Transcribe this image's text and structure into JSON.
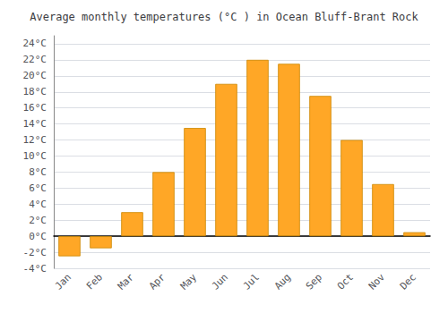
{
  "chart_data": {
    "type": "bar",
    "title": "Average monthly temperatures (°C ) in Ocean Bluff-Brant Rock",
    "categories": [
      "Jan",
      "Feb",
      "Mar",
      "Apr",
      "May",
      "Jun",
      "Jul",
      "Aug",
      "Sep",
      "Oct",
      "Nov",
      "Dec"
    ],
    "values": [
      -2.5,
      -1.5,
      3.0,
      8.0,
      13.5,
      19.0,
      22.0,
      21.5,
      17.5,
      12.0,
      6.5,
      0.5
    ],
    "color": "#FFA726",
    "ylim": [
      -4,
      25
    ],
    "yticks": [
      {
        "value": -4,
        "label": "-4°C"
      },
      {
        "value": -2,
        "label": "-2°C"
      },
      {
        "value": 0,
        "label": "0°C"
      },
      {
        "value": 2,
        "label": "2°C"
      },
      {
        "value": 4,
        "label": "4°C"
      },
      {
        "value": 6,
        "label": "6°C"
      },
      {
        "value": 8,
        "label": "8°C"
      },
      {
        "value": 10,
        "label": "10°C"
      },
      {
        "value": 12,
        "label": "12°C"
      },
      {
        "value": 14,
        "label": "14°C"
      },
      {
        "value": 16,
        "label": "16°C"
      },
      {
        "value": 18,
        "label": "18°C"
      },
      {
        "value": 20,
        "label": "20°C"
      },
      {
        "value": 22,
        "label": "22°C"
      },
      {
        "value": 24,
        "label": "24°C"
      }
    ],
    "grid": true
  }
}
